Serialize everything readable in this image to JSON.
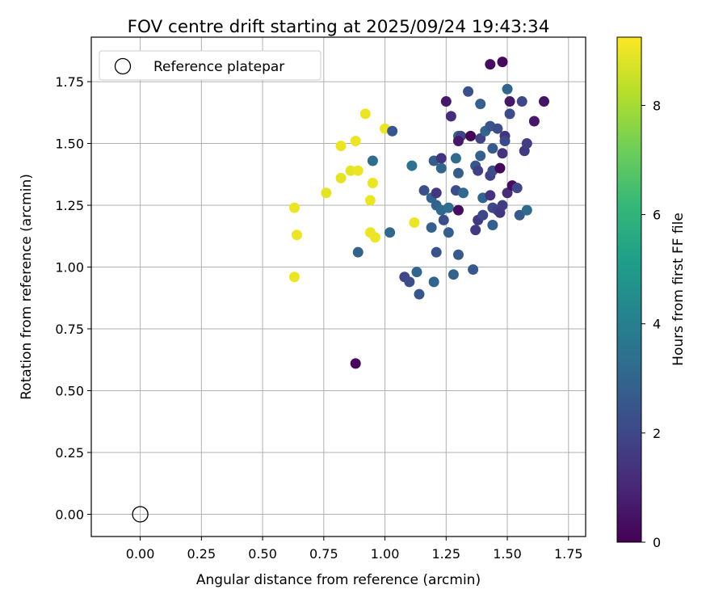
{
  "chart_data": {
    "type": "scatter",
    "title": "FOV centre drift starting at 2025/09/24 19:43:34",
    "xlabel": "Angular distance from reference (arcmin)",
    "ylabel": "Rotation from reference (arcmin)",
    "xlim": [
      -0.2,
      1.82
    ],
    "ylim": [
      -0.09,
      1.93
    ],
    "xticks": [
      "0.00",
      "0.25",
      "0.50",
      "0.75",
      "1.00",
      "1.25",
      "1.50",
      "1.75"
    ],
    "yticks": [
      "0.00",
      "0.25",
      "0.50",
      "0.75",
      "1.00",
      "1.25",
      "1.50",
      "1.75"
    ],
    "grid": true,
    "legend": {
      "location": "upper-left",
      "label": "Reference platepar"
    },
    "reference_point": {
      "x": 0.0,
      "y": 0.0
    },
    "colorbar": {
      "label": "Hours from first FF file",
      "min": 0,
      "max": 9.25,
      "ticks": [
        "0",
        "2",
        "4",
        "6",
        "8"
      ],
      "colormap": "viridis",
      "stops": [
        "#440154",
        "#482878",
        "#3e4989",
        "#31688e",
        "#26828e",
        "#1f9e89",
        "#35b779",
        "#6ece58",
        "#b5de2b",
        "#fde725"
      ]
    },
    "points": [
      {
        "x": 0.63,
        "y": 1.24,
        "c": 9.0
      },
      {
        "x": 0.64,
        "y": 1.13,
        "c": 9.0
      },
      {
        "x": 0.63,
        "y": 0.96,
        "c": 9.0
      },
      {
        "x": 0.76,
        "y": 1.3,
        "c": 8.9
      },
      {
        "x": 0.82,
        "y": 1.49,
        "c": 9.0
      },
      {
        "x": 0.82,
        "y": 1.36,
        "c": 8.9
      },
      {
        "x": 0.86,
        "y": 1.39,
        "c": 8.9
      },
      {
        "x": 0.88,
        "y": 1.51,
        "c": 9.0
      },
      {
        "x": 0.89,
        "y": 1.39,
        "c": 9.0
      },
      {
        "x": 0.92,
        "y": 1.62,
        "c": 9.0
      },
      {
        "x": 0.94,
        "y": 1.27,
        "c": 9.0
      },
      {
        "x": 0.95,
        "y": 1.34,
        "c": 9.0
      },
      {
        "x": 0.94,
        "y": 1.14,
        "c": 9.0
      },
      {
        "x": 0.96,
        "y": 1.12,
        "c": 9.0
      },
      {
        "x": 1.0,
        "y": 1.56,
        "c": 9.0
      },
      {
        "x": 1.12,
        "y": 1.18,
        "c": 9.0
      },
      {
        "x": 0.95,
        "y": 1.43,
        "c": 3.3
      },
      {
        "x": 0.89,
        "y": 1.06,
        "c": 2.9
      },
      {
        "x": 0.88,
        "y": 0.61,
        "c": 0.2
      },
      {
        "x": 1.02,
        "y": 1.14,
        "c": 3.1
      },
      {
        "x": 1.03,
        "y": 1.55,
        "c": 2.5
      },
      {
        "x": 1.08,
        "y": 0.96,
        "c": 2.0
      },
      {
        "x": 1.1,
        "y": 0.94,
        "c": 2.2
      },
      {
        "x": 1.11,
        "y": 1.41,
        "c": 3.5
      },
      {
        "x": 1.13,
        "y": 0.98,
        "c": 3.0
      },
      {
        "x": 1.14,
        "y": 0.89,
        "c": 2.5
      },
      {
        "x": 1.16,
        "y": 1.31,
        "c": 2.3
      },
      {
        "x": 1.19,
        "y": 1.28,
        "c": 3.0
      },
      {
        "x": 1.19,
        "y": 1.16,
        "c": 2.8
      },
      {
        "x": 1.2,
        "y": 0.94,
        "c": 3.0
      },
      {
        "x": 1.2,
        "y": 1.43,
        "c": 2.7
      },
      {
        "x": 1.21,
        "y": 1.3,
        "c": 1.5
      },
      {
        "x": 1.21,
        "y": 1.25,
        "c": 2.9
      },
      {
        "x": 1.21,
        "y": 1.06,
        "c": 2.4
      },
      {
        "x": 1.23,
        "y": 1.44,
        "c": 1.4
      },
      {
        "x": 1.23,
        "y": 1.4,
        "c": 3.0
      },
      {
        "x": 1.23,
        "y": 1.23,
        "c": 3.1
      },
      {
        "x": 1.24,
        "y": 1.19,
        "c": 2.3
      },
      {
        "x": 1.25,
        "y": 1.67,
        "c": 0.6
      },
      {
        "x": 1.26,
        "y": 1.24,
        "c": 3.3
      },
      {
        "x": 1.26,
        "y": 1.14,
        "c": 2.8
      },
      {
        "x": 1.27,
        "y": 1.61,
        "c": 1.2
      },
      {
        "x": 1.28,
        "y": 0.97,
        "c": 2.9
      },
      {
        "x": 1.29,
        "y": 1.44,
        "c": 3.2
      },
      {
        "x": 1.29,
        "y": 1.31,
        "c": 2.2
      },
      {
        "x": 1.3,
        "y": 1.53,
        "c": 3.2
      },
      {
        "x": 1.3,
        "y": 1.38,
        "c": 2.7
      },
      {
        "x": 1.3,
        "y": 1.05,
        "c": 2.6
      },
      {
        "x": 1.31,
        "y": 1.53,
        "c": 1.9
      },
      {
        "x": 1.3,
        "y": 1.51,
        "c": 0.6
      },
      {
        "x": 1.32,
        "y": 1.3,
        "c": 3.1
      },
      {
        "x": 1.3,
        "y": 1.23,
        "c": 0.3
      },
      {
        "x": 1.34,
        "y": 1.71,
        "c": 2.3
      },
      {
        "x": 1.35,
        "y": 1.53,
        "c": 0.1
      },
      {
        "x": 1.36,
        "y": 0.99,
        "c": 2.6
      },
      {
        "x": 1.37,
        "y": 1.41,
        "c": 2.5
      },
      {
        "x": 1.37,
        "y": 1.15,
        "c": 1.6
      },
      {
        "x": 1.38,
        "y": 1.39,
        "c": 1.8
      },
      {
        "x": 1.38,
        "y": 1.19,
        "c": 1.6
      },
      {
        "x": 1.39,
        "y": 1.66,
        "c": 2.8
      },
      {
        "x": 1.39,
        "y": 1.52,
        "c": 1.9
      },
      {
        "x": 1.39,
        "y": 1.45,
        "c": 2.8
      },
      {
        "x": 1.4,
        "y": 1.28,
        "c": 3.0
      },
      {
        "x": 1.4,
        "y": 1.21,
        "c": 2.0
      },
      {
        "x": 1.41,
        "y": 1.55,
        "c": 3.0
      },
      {
        "x": 1.43,
        "y": 1.82,
        "c": 0.3
      },
      {
        "x": 1.43,
        "y": 1.57,
        "c": 2.4
      },
      {
        "x": 1.43,
        "y": 1.37,
        "c": 1.9
      },
      {
        "x": 1.43,
        "y": 1.29,
        "c": 1.3
      },
      {
        "x": 1.44,
        "y": 1.39,
        "c": 2.2
      },
      {
        "x": 1.44,
        "y": 1.48,
        "c": 2.6
      },
      {
        "x": 1.44,
        "y": 1.24,
        "c": 2.1
      },
      {
        "x": 1.44,
        "y": 1.17,
        "c": 2.8
      },
      {
        "x": 1.46,
        "y": 1.56,
        "c": 2.2
      },
      {
        "x": 1.46,
        "y": 1.23,
        "c": 1.8
      },
      {
        "x": 1.47,
        "y": 1.4,
        "c": 0.2
      },
      {
        "x": 1.47,
        "y": 1.22,
        "c": 1.5
      },
      {
        "x": 1.48,
        "y": 1.25,
        "c": 1.7
      },
      {
        "x": 1.48,
        "y": 1.83,
        "c": 0.2
      },
      {
        "x": 1.48,
        "y": 1.46,
        "c": 1.4
      },
      {
        "x": 1.49,
        "y": 1.53,
        "c": 1.3
      },
      {
        "x": 1.49,
        "y": 1.51,
        "c": 2.1
      },
      {
        "x": 1.5,
        "y": 1.72,
        "c": 3.0
      },
      {
        "x": 1.5,
        "y": 1.3,
        "c": 1.2
      },
      {
        "x": 1.51,
        "y": 1.67,
        "c": 0.6
      },
      {
        "x": 1.51,
        "y": 1.62,
        "c": 2.2
      },
      {
        "x": 1.52,
        "y": 1.33,
        "c": 0.3
      },
      {
        "x": 1.54,
        "y": 1.32,
        "c": 2.0
      },
      {
        "x": 1.55,
        "y": 1.21,
        "c": 2.6
      },
      {
        "x": 1.56,
        "y": 1.67,
        "c": 2.0
      },
      {
        "x": 1.57,
        "y": 1.47,
        "c": 1.6
      },
      {
        "x": 1.58,
        "y": 1.23,
        "c": 3.2
      },
      {
        "x": 1.58,
        "y": 1.5,
        "c": 1.7
      },
      {
        "x": 1.61,
        "y": 1.59,
        "c": 0.6
      },
      {
        "x": 1.65,
        "y": 1.67,
        "c": 0.5
      }
    ]
  }
}
